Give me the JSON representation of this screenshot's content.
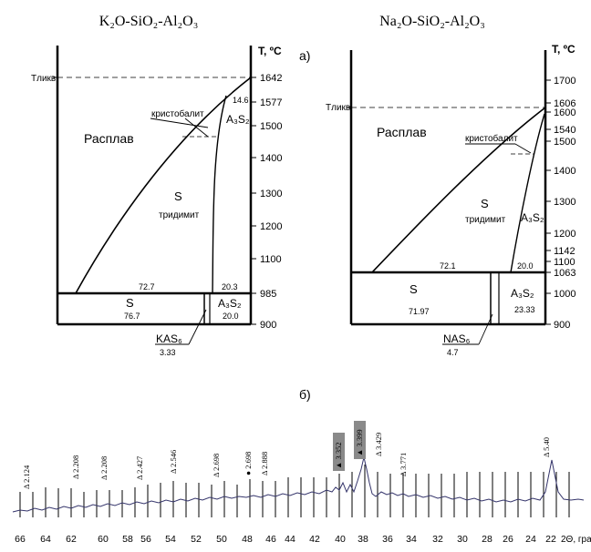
{
  "labels": {
    "part_a": "а)",
    "part_b": "б)"
  },
  "panel_k": {
    "title": "K₂O-SiO₂-Al₂O₃",
    "axis_title": "T, ºC",
    "t_label": "Tликв",
    "temp_ticks": [
      "1642",
      "1577",
      "1500",
      "1400",
      "1300",
      "1200",
      "1100",
      "985",
      "900"
    ],
    "region_melt": "Расплав",
    "region_s": "S",
    "region_tridymite": "тридимит",
    "cristobalite": "кристобалит",
    "a3s2_upper": "A₃S₂",
    "value_14_6": "14.6",
    "value_72_7": "72.7",
    "value_20_3": "20.3",
    "lower_s": "S",
    "lower_s_value": "76.7",
    "lower_a3s2": "A₃S₂",
    "lower_a3s2_value": "20.0",
    "kas_label": "KAS₆",
    "kas_value": "3.33"
  },
  "panel_na": {
    "title": "Na₂O-SiO₂-Al₂O₃",
    "axis_title": "T, ºC",
    "t_label": "Tликв",
    "temp_ticks": [
      "1700",
      "1606",
      "1600",
      "1540",
      "1500",
      "1400",
      "1300",
      "1200",
      "1142",
      "1100",
      "1063",
      "1000",
      "900"
    ],
    "region_melt": "Расплав",
    "region_s": "S",
    "region_tridymite": "тридимит",
    "cristobalite": "кристобалит",
    "a3s2_upper": "A₃S₂",
    "value_72_1": "72.1",
    "value_20_0": "20.0",
    "lower_s": "S",
    "lower_s_value": "71.97",
    "lower_a3s2": "A₃S₂",
    "lower_a3s2_value": "23.33",
    "nas_label": "NAS₆",
    "nas_value": "4.7"
  },
  "xrd": {
    "x_axis_label": "2Θ, град",
    "x_ticks": [
      "66",
      "64",
      "62",
      "60",
      "58",
      "56",
      "54",
      "52",
      "50",
      "48",
      "46",
      "44",
      "42",
      "40",
      "38",
      "36",
      "34",
      "32",
      "30",
      "28",
      "26",
      "24",
      "22"
    ],
    "peak_labels": [
      "Δ 2.124",
      "Δ 2.208",
      "Δ 2.208",
      "Δ 2.427",
      "Δ 2.546",
      "Δ 2.698",
      "● 2.698",
      "Δ 2.888",
      "▲ 3.352",
      "▲ 3.399",
      "Δ 3.429",
      "Δ 3.771",
      "Δ 5.40"
    ]
  }
}
